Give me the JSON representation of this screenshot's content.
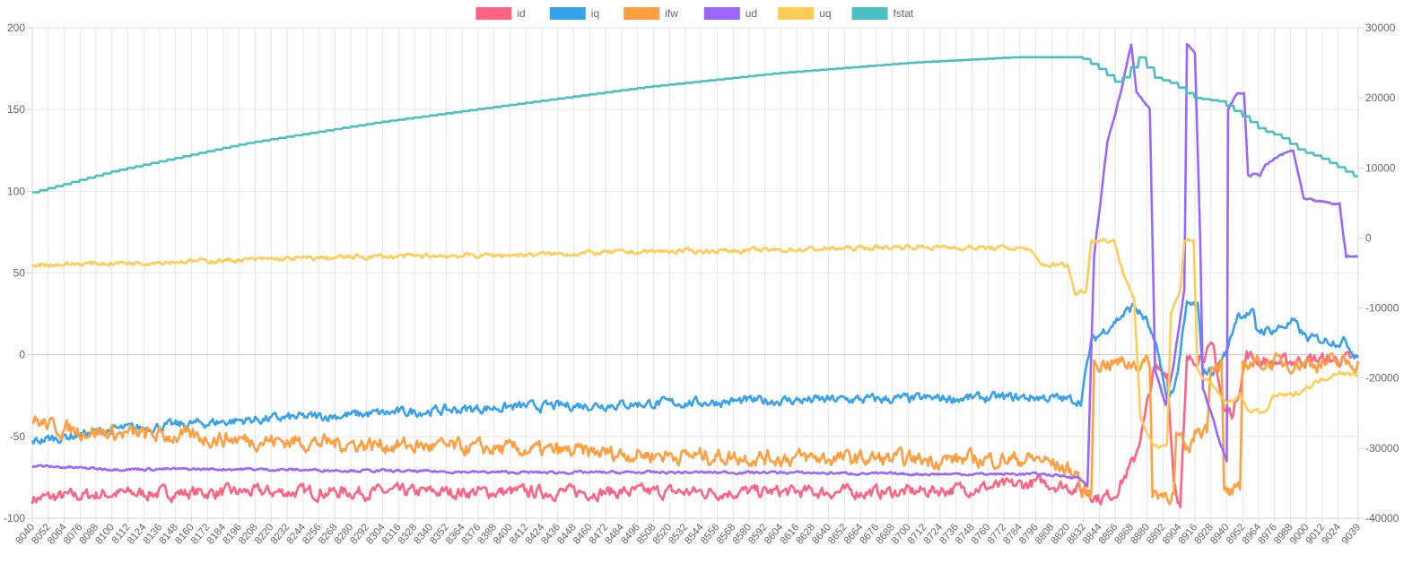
{
  "chart_data": {
    "type": "line",
    "title": "",
    "legend_position": "top-center",
    "x_start": 8040,
    "x_end": 9039,
    "x_tick_labels": [
      "8040",
      "8052",
      "8064",
      "8076",
      "8088",
      "8100",
      "8112",
      "8124",
      "8136",
      "8148",
      "8160",
      "8172",
      "8184",
      "8196",
      "8208",
      "8220",
      "8232",
      "8244",
      "8256",
      "8268",
      "8280",
      "8292",
      "8304",
      "8316",
      "8328",
      "8340",
      "8352",
      "8364",
      "8376",
      "8388",
      "8400",
      "8412",
      "8424",
      "8436",
      "8448",
      "8460",
      "8472",
      "8484",
      "8496",
      "8508",
      "8520",
      "8532",
      "8544",
      "8556",
      "8568",
      "8580",
      "8592",
      "8604",
      "8616",
      "8628",
      "8640",
      "8652",
      "8664",
      "8676",
      "8688",
      "8700",
      "8712",
      "8724",
      "8736",
      "8748",
      "8760",
      "8772",
      "8784",
      "8796",
      "8808",
      "8820",
      "8832",
      "8844",
      "8856",
      "8868",
      "8880",
      "8892",
      "8904",
      "8916",
      "8928",
      "8940",
      "8952",
      "8964",
      "8976",
      "8988",
      "9000",
      "9012",
      "9024",
      "9039"
    ],
    "y_left": {
      "min": -100,
      "max": 200,
      "ticks": [
        -100,
        -50,
        0,
        50,
        100,
        150,
        200
      ]
    },
    "y_right": {
      "min": -40000,
      "max": 30000,
      "ticks": [
        -40000,
        -30000,
        -20000,
        -10000,
        0,
        10000,
        20000,
        30000
      ]
    },
    "series": [
      {
        "name": "id",
        "color": "#ff6384",
        "axis": "left",
        "noise": 4,
        "points": [
          [
            8040,
            -88
          ],
          [
            8100,
            -85
          ],
          [
            8200,
            -84
          ],
          [
            8300,
            -84
          ],
          [
            8400,
            -84
          ],
          [
            8500,
            -84
          ],
          [
            8600,
            -84
          ],
          [
            8700,
            -84
          ],
          [
            8780,
            -80
          ],
          [
            8800,
            -78
          ],
          [
            8830,
            -82
          ],
          [
            8845,
            -88
          ],
          [
            8855,
            -85
          ],
          [
            8862,
            -76
          ],
          [
            8870,
            -65
          ],
          [
            8878,
            -40
          ],
          [
            8885,
            -10
          ],
          [
            8895,
            -10
          ],
          [
            8900,
            -75
          ],
          [
            8905,
            -93
          ],
          [
            8910,
            -5
          ],
          [
            8920,
            0
          ],
          [
            8930,
            3
          ],
          [
            8938,
            -35
          ],
          [
            8945,
            -35
          ],
          [
            8955,
            0
          ],
          [
            8962,
            -3
          ],
          [
            8975,
            -5
          ],
          [
            9000,
            -3
          ],
          [
            9039,
            -3
          ]
        ]
      },
      {
        "name": "iq",
        "color": "#36a2eb",
        "axis": "left",
        "noise": 3,
        "points": [
          [
            8040,
            -53
          ],
          [
            8100,
            -46
          ],
          [
            8200,
            -40
          ],
          [
            8300,
            -36
          ],
          [
            8400,
            -32
          ],
          [
            8500,
            -30
          ],
          [
            8600,
            -28
          ],
          [
            8700,
            -27
          ],
          [
            8800,
            -26
          ],
          [
            8830,
            -28
          ],
          [
            8838,
            8
          ],
          [
            8855,
            20
          ],
          [
            8870,
            30
          ],
          [
            8880,
            20
          ],
          [
            8890,
            -5
          ],
          [
            8895,
            -30
          ],
          [
            8902,
            -15
          ],
          [
            8910,
            30
          ],
          [
            8918,
            30
          ],
          [
            8922,
            -10
          ],
          [
            8930,
            -10
          ],
          [
            8940,
            2
          ],
          [
            8948,
            25
          ],
          [
            8960,
            25
          ],
          [
            8962,
            15
          ],
          [
            8975,
            15
          ],
          [
            8990,
            20
          ],
          [
            9000,
            10
          ],
          [
            9030,
            8
          ],
          [
            9035,
            2
          ],
          [
            9039,
            0
          ]
        ]
      },
      {
        "name": "ifw",
        "color": "#ff9f40",
        "axis": "left",
        "noise": 5,
        "points": [
          [
            8040,
            -40
          ],
          [
            8060,
            -45
          ],
          [
            8100,
            -48
          ],
          [
            8200,
            -52
          ],
          [
            8300,
            -55
          ],
          [
            8400,
            -58
          ],
          [
            8500,
            -61
          ],
          [
            8600,
            -63
          ],
          [
            8700,
            -64
          ],
          [
            8800,
            -64
          ],
          [
            8828,
            -73
          ],
          [
            8830,
            -85
          ],
          [
            8838,
            -85
          ],
          [
            8840,
            -5
          ],
          [
            8882,
            -5
          ],
          [
            8884,
            -85
          ],
          [
            8900,
            -85
          ],
          [
            8902,
            -50
          ],
          [
            8910,
            -60
          ],
          [
            8918,
            -45
          ],
          [
            8925,
            -45
          ],
          [
            8928,
            -5
          ],
          [
            8936,
            -5
          ],
          [
            8938,
            -85
          ],
          [
            8950,
            -85
          ],
          [
            8952,
            -5
          ],
          [
            9039,
            -5
          ]
        ]
      },
      {
        "name": "ud",
        "color": "#9966ff",
        "axis": "left",
        "noise": 0.8,
        "points": [
          [
            8040,
            -68
          ],
          [
            8100,
            -70
          ],
          [
            8200,
            -70
          ],
          [
            8300,
            -71
          ],
          [
            8400,
            -72
          ],
          [
            8500,
            -72
          ],
          [
            8600,
            -72
          ],
          [
            8700,
            -73
          ],
          [
            8800,
            -73
          ],
          [
            8828,
            -75
          ],
          [
            8835,
            -80
          ],
          [
            8840,
            60
          ],
          [
            8850,
            130
          ],
          [
            8860,
            160
          ],
          [
            8868,
            190
          ],
          [
            8872,
            160
          ],
          [
            8882,
            150
          ],
          [
            8886,
            -10
          ],
          [
            8894,
            -30
          ],
          [
            8900,
            -5
          ],
          [
            8908,
            40
          ],
          [
            8910,
            190
          ],
          [
            8916,
            185
          ],
          [
            8920,
            70
          ],
          [
            8922,
            -20
          ],
          [
            8930,
            -40
          ],
          [
            8935,
            -55
          ],
          [
            8940,
            -65
          ],
          [
            8941,
            150
          ],
          [
            8948,
            160
          ],
          [
            8953,
            160
          ],
          [
            8956,
            110
          ],
          [
            8965,
            110
          ],
          [
            8968,
            115
          ],
          [
            8980,
            122
          ],
          [
            8990,
            125
          ],
          [
            8998,
            95
          ],
          [
            9025,
            92
          ],
          [
            9030,
            60
          ],
          [
            9039,
            60
          ]
        ]
      },
      {
        "name": "uq",
        "color": "#ffcd56",
        "axis": "left",
        "noise": 1.5,
        "points": [
          [
            8040,
            55
          ],
          [
            8100,
            56
          ],
          [
            8200,
            58
          ],
          [
            8300,
            60
          ],
          [
            8400,
            61
          ],
          [
            8500,
            63
          ],
          [
            8600,
            64
          ],
          [
            8700,
            66
          ],
          [
            8790,
            65
          ],
          [
            8800,
            55
          ],
          [
            8820,
            55
          ],
          [
            8826,
            37
          ],
          [
            8834,
            40
          ],
          [
            8838,
            70
          ],
          [
            8855,
            70
          ],
          [
            8862,
            50
          ],
          [
            8870,
            35
          ],
          [
            8875,
            -40
          ],
          [
            8885,
            -55
          ],
          [
            8895,
            -55
          ],
          [
            8898,
            25
          ],
          [
            8905,
            40
          ],
          [
            8908,
            70
          ],
          [
            8915,
            70
          ],
          [
            8918,
            -10
          ],
          [
            8930,
            -20
          ],
          [
            8940,
            -30
          ],
          [
            8950,
            -25
          ],
          [
            8958,
            -35
          ],
          [
            8970,
            -35
          ],
          [
            8975,
            -25
          ],
          [
            8990,
            -25
          ],
          [
            9000,
            -20
          ],
          [
            9025,
            -10
          ],
          [
            9030,
            -12
          ],
          [
            9039,
            -12
          ]
        ]
      },
      {
        "name": "fstat",
        "color": "#4bc0c0",
        "axis": "right",
        "noise": 0,
        "points": [
          [
            8040,
            6500
          ],
          [
            8100,
            9500
          ],
          [
            8200,
            13500
          ],
          [
            8300,
            16500
          ],
          [
            8400,
            19000
          ],
          [
            8500,
            21500
          ],
          [
            8600,
            23500
          ],
          [
            8700,
            25000
          ],
          [
            8780,
            25800
          ],
          [
            8830,
            25800
          ],
          [
            8845,
            24000
          ],
          [
            8858,
            22000
          ],
          [
            8875,
            26000
          ],
          [
            8884,
            23000
          ],
          [
            8900,
            22000
          ],
          [
            8915,
            20000
          ],
          [
            8935,
            19500
          ],
          [
            8955,
            17000
          ],
          [
            8965,
            15500
          ],
          [
            8980,
            14500
          ],
          [
            8995,
            12500
          ],
          [
            9010,
            11500
          ],
          [
            9025,
            10000
          ],
          [
            9039,
            8500
          ]
        ]
      }
    ]
  }
}
